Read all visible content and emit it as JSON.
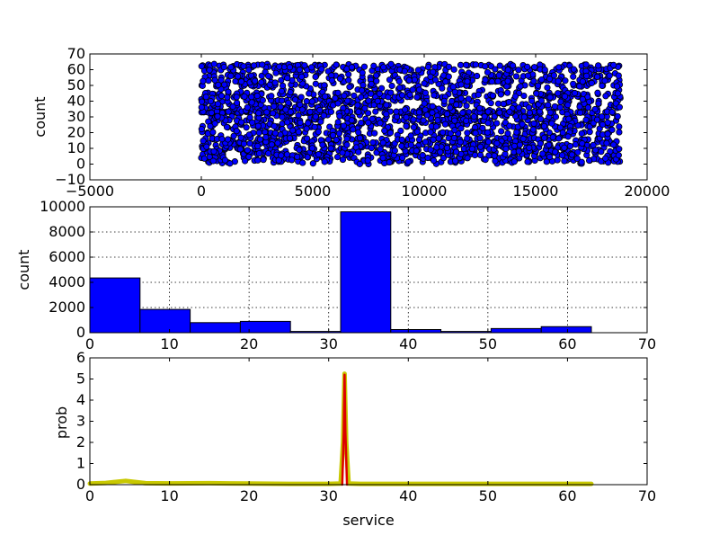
{
  "chart_data": [
    {
      "type": "scatter",
      "title": "",
      "xlabel": "",
      "ylabel": "count",
      "xlim": [
        -5000,
        20000
      ],
      "ylim": [
        -10,
        70
      ],
      "xticks": [
        -5000,
        0,
        5000,
        10000,
        15000,
        20000
      ],
      "xtick_labels": [
        "−5000",
        "0",
        "5000",
        "10000",
        "15000",
        "20000"
      ],
      "yticks": [
        -10,
        0,
        10,
        20,
        30,
        40,
        50,
        60,
        70
      ],
      "ytick_labels": [
        "−10",
        "0",
        "10",
        "20",
        "30",
        "40",
        "50",
        "60",
        "70"
      ],
      "grid": false,
      "series": [
        {
          "color": "#0000ff",
          "x_range": [
            0,
            18800
          ],
          "values_sample": [
            [
              0,
              4
            ],
            [
              200,
              62
            ],
            [
              420,
              33
            ],
            [
              650,
              12
            ],
            [
              900,
              55
            ],
            [
              1200,
              1
            ],
            [
              1500,
              37
            ],
            [
              1800,
              25
            ],
            [
              2100,
              63
            ],
            [
              2400,
              8
            ],
            [
              2700,
              45
            ],
            [
              3000,
              18
            ],
            [
              3300,
              33
            ],
            [
              3600,
              59
            ],
            [
              3900,
              3
            ],
            [
              4200,
              28
            ],
            [
              4500,
              50
            ],
            [
              4800,
              14
            ],
            [
              5100,
              63
            ],
            [
              5400,
              33
            ],
            [
              5700,
              6
            ],
            [
              6000,
              40
            ],
            [
              6300,
              22
            ],
            [
              6600,
              57
            ],
            [
              6900,
              10
            ],
            [
              7200,
              33
            ],
            [
              7500,
              0
            ],
            [
              7800,
              48
            ],
            [
              8100,
              16
            ],
            [
              8400,
              62
            ],
            [
              8700,
              30
            ],
            [
              9000,
              5
            ],
            [
              9300,
              53
            ],
            [
              9600,
              20
            ],
            [
              9900,
              36
            ],
            [
              10200,
              63
            ],
            [
              10500,
              9
            ],
            [
              10800,
              42
            ],
            [
              11100,
              26
            ],
            [
              11400,
              1
            ],
            [
              11700,
              58
            ],
            [
              12000,
              33
            ],
            [
              12300,
              13
            ],
            [
              12600,
              47
            ],
            [
              12900,
              63
            ],
            [
              13200,
              4
            ],
            [
              13500,
              31
            ],
            [
              13800,
              55
            ],
            [
              14100,
              18
            ],
            [
              14400,
              38
            ],
            [
              14700,
              2
            ],
            [
              15000,
              61
            ],
            [
              15300,
              24
            ],
            [
              15600,
              44
            ],
            [
              15900,
              8
            ],
            [
              16200,
              33
            ],
            [
              16500,
              63
            ],
            [
              16800,
              15
            ],
            [
              17100,
              51
            ],
            [
              17400,
              28
            ],
            [
              17700,
              4
            ],
            [
              18000,
              60
            ],
            [
              18300,
              35
            ],
            [
              18600,
              11
            ],
            [
              18800,
              42
            ]
          ]
        }
      ]
    },
    {
      "type": "bar",
      "title": "",
      "xlabel": "",
      "ylabel": "count",
      "xlim": [
        0,
        70
      ],
      "ylim": [
        0,
        10000
      ],
      "xticks": [
        0,
        10,
        20,
        30,
        40,
        50,
        60,
        70
      ],
      "xtick_labels": [
        "0",
        "10",
        "20",
        "30",
        "40",
        "50",
        "60",
        "70"
      ],
      "yticks": [
        0,
        2000,
        4000,
        6000,
        8000,
        10000
      ],
      "ytick_labels": [
        "0",
        "2000",
        "4000",
        "6000",
        "8000",
        "10000"
      ],
      "grid": true,
      "bin_edges": [
        0,
        6.3,
        12.6,
        18.9,
        25.2,
        31.5,
        37.8,
        44.1,
        50.4,
        56.7,
        63
      ],
      "values": [
        4350,
        1850,
        800,
        900,
        100,
        9600,
        250,
        100,
        330,
        480
      ],
      "color": "#0000ff"
    },
    {
      "type": "line",
      "title": "",
      "xlabel": "service",
      "ylabel": "prob",
      "xlim": [
        0,
        70
      ],
      "ylim": [
        0,
        6
      ],
      "xticks": [
        0,
        10,
        20,
        30,
        40,
        50,
        60,
        70
      ],
      "xtick_labels": [
        "0",
        "10",
        "20",
        "30",
        "40",
        "50",
        "60",
        "70"
      ],
      "yticks": [
        0,
        1,
        2,
        3,
        4,
        5,
        6
      ],
      "ytick_labels": [
        "0",
        "1",
        "2",
        "3",
        "4",
        "5",
        "6"
      ],
      "grid": false,
      "series": [
        {
          "color": "#c8c800",
          "x": [
            0,
            2,
            3.5,
            4.5,
            5.5,
            7,
            10,
            15,
            20,
            25,
            30,
            31.5,
            31.8,
            32,
            32.2,
            32.5,
            34,
            40,
            50,
            60,
            63
          ],
          "values": [
            0.05,
            0.08,
            0.14,
            0.18,
            0.13,
            0.07,
            0.06,
            0.07,
            0.05,
            0.04,
            0.04,
            0.05,
            2.0,
            5.25,
            2.0,
            0.05,
            0.04,
            0.04,
            0.04,
            0.04,
            0.04
          ]
        },
        {
          "color": "#dd0000",
          "x": [
            31.7,
            31.9,
            32,
            32.1,
            32.3
          ],
          "values": [
            0.0,
            2.5,
            5.2,
            2.5,
            0.0
          ]
        }
      ]
    }
  ]
}
